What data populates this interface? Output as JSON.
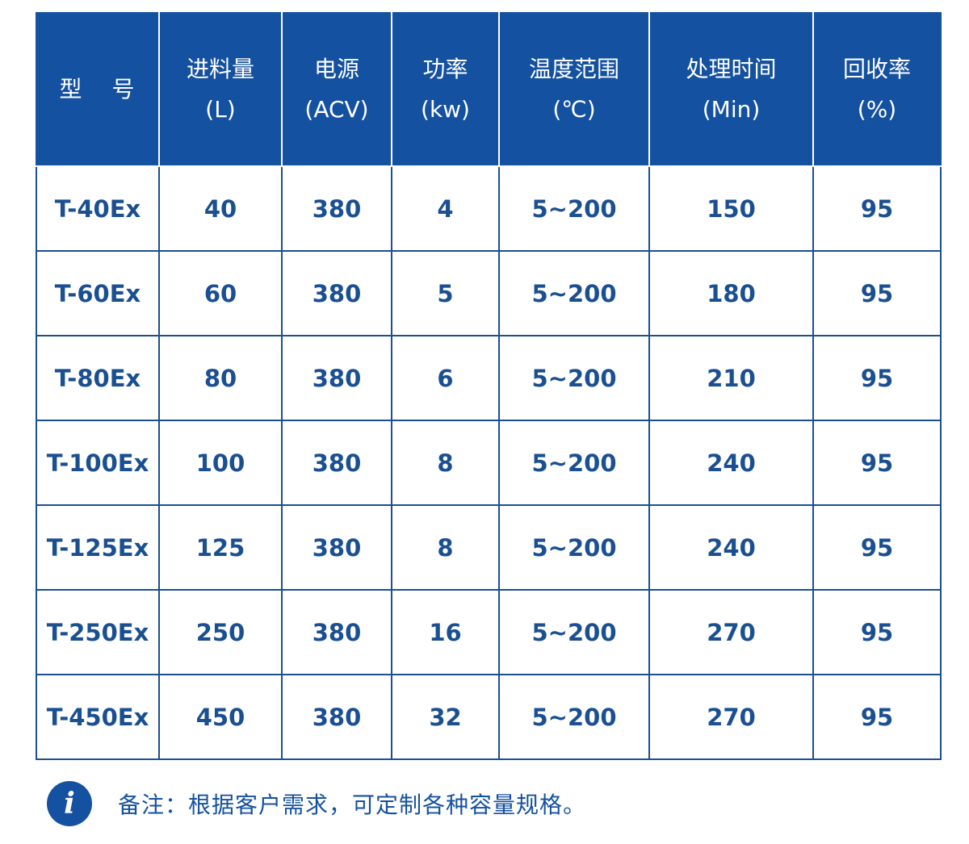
{
  "table": {
    "headers": [
      {
        "name": "型 号",
        "unit": ""
      },
      {
        "name": "进料量",
        "unit": "(L)"
      },
      {
        "name": "电源",
        "unit": "(ACV)"
      },
      {
        "name": "功率",
        "unit": "(kw)"
      },
      {
        "name": "温度范围",
        "unit": "(℃)"
      },
      {
        "name": "处理时间",
        "unit": "(Min)"
      },
      {
        "name": "回收率",
        "unit": "(%)"
      }
    ],
    "rows": [
      [
        "T-40Ex",
        "40",
        "380",
        "4",
        "5~200",
        "150",
        "95"
      ],
      [
        "T-60Ex",
        "60",
        "380",
        "5",
        "5~200",
        "180",
        "95"
      ],
      [
        "T-80Ex",
        "80",
        "380",
        "6",
        "5~200",
        "210",
        "95"
      ],
      [
        "T-100Ex",
        "100",
        "380",
        "8",
        "5~200",
        "240",
        "95"
      ],
      [
        "T-125Ex",
        "125",
        "380",
        "8",
        "5~200",
        "240",
        "95"
      ],
      [
        "T-250Ex",
        "250",
        "380",
        "16",
        "5~200",
        "270",
        "95"
      ],
      [
        "T-450Ex",
        "450",
        "380",
        "32",
        "5~200",
        "270",
        "95"
      ]
    ]
  },
  "note": {
    "icon": "i",
    "text": "备注：根据客户需求，可定制各种容量规格。"
  },
  "colors": {
    "header_bg": "#1451a0",
    "text": "#1a4f91",
    "border": "#1a4f91"
  }
}
